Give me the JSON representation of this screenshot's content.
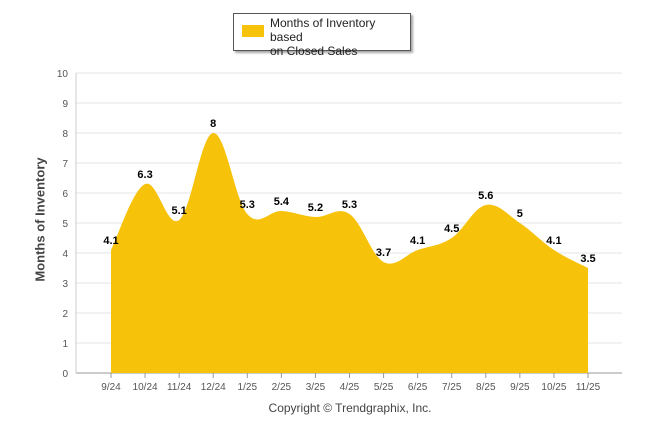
{
  "chart_data": {
    "type": "area",
    "title": "",
    "xlabel": "",
    "ylabel": "Months of Inventory",
    "ylim": [
      0,
      10
    ],
    "yticks": [
      "0",
      "1",
      "2",
      "3",
      "4",
      "5",
      "6",
      "7",
      "8",
      "9",
      "10"
    ],
    "categories": [
      "9/24",
      "10/24",
      "11/24",
      "12/24",
      "1/25",
      "2/25",
      "3/25",
      "4/25",
      "5/25",
      "6/25",
      "7/25",
      "8/25",
      "9/25",
      "10/25",
      "11/25"
    ],
    "series": [
      {
        "name": "Months of Inventory based on Closed Sales",
        "values": [
          4.1,
          6.3,
          5.1,
          8,
          5.3,
          5.4,
          5.2,
          5.3,
          3.7,
          4.1,
          4.5,
          5.6,
          5,
          4.1,
          3.5
        ],
        "labels": [
          "4.1",
          "6.3",
          "5.1",
          "8",
          "5.3",
          "5.4",
          "5.2",
          "5.3",
          "3.7",
          "4.1",
          "4.5",
          "5.6",
          "5",
          "4.1",
          "3.5"
        ],
        "color": "#f7c20a"
      }
    ],
    "legend": {
      "position": "top-center",
      "line1": "Months of Inventory based",
      "line2": "on Closed Sales"
    },
    "grid": true
  },
  "footer": {
    "copyright": "Copyright © Trendgraphix, Inc."
  }
}
